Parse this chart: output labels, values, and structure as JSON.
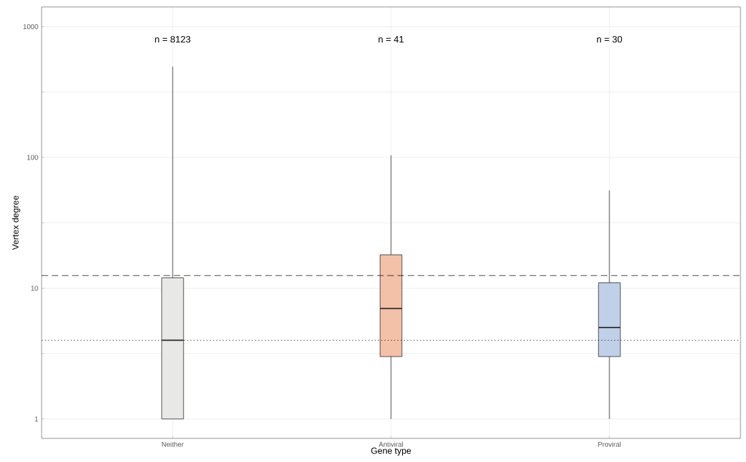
{
  "chart_data": {
    "type": "box",
    "xlabel": "Gene type",
    "ylabel": "Vertex degree",
    "categories": [
      "Neither",
      "Antiviral",
      "Proviral"
    ],
    "boxes": [
      {
        "low": 1,
        "q1": 1,
        "median": 4,
        "q3": 12,
        "high": 495
      },
      {
        "low": 1,
        "q1": 3,
        "median": 7,
        "q3": 18,
        "high": 104
      },
      {
        "low": 1,
        "q1": 3,
        "median": 5,
        "q3": 11,
        "high": 56
      }
    ],
    "colors": [
      "#e8e8e6",
      "#f3c0a8",
      "#c0d0e8"
    ],
    "log": "y",
    "ylim": [
      0.71,
      1416
    ],
    "yticks": [
      1,
      {
        "value": 3.162,
        "label": null
      },
      10,
      {
        "value": 31.62,
        "label": null
      },
      100,
      {
        "value": 316.2,
        "label": null
      },
      1000
    ],
    "grid": true,
    "ref_lines": [
      {
        "axis": "y",
        "value": 12.5,
        "line_style": "dashed"
      },
      {
        "axis": "y",
        "value": 4,
        "line_style": "dotted"
      }
    ],
    "annotations": [
      "n = 8123",
      "n = 41",
      "n = 30"
    ]
  }
}
